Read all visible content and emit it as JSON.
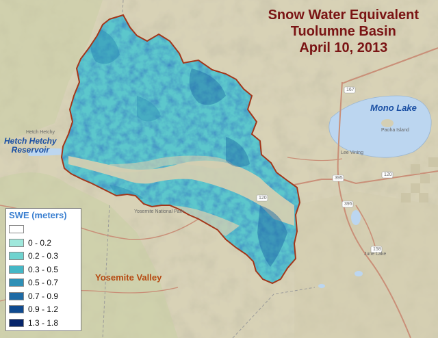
{
  "title": {
    "line1": "Snow Water Equivalent",
    "line2": "Tuolumne Basin",
    "line3": "April 10, 2013",
    "color": "#7a1414"
  },
  "labels": {
    "lake": "Mono Lake",
    "reservoir_line1": "Hetch Hetchy",
    "reservoir_line2": "Reservoir",
    "valley": "Yosemite Valley",
    "small": {
      "basin_label": "Hetch Hetchy",
      "island": "Paoha Island",
      "lee_vining": "Lee Vining",
      "june_lake": "June Lake",
      "park": "Yosemite National Park",
      "route_167": "167",
      "route_120a": "120",
      "route_120b": "120",
      "route_395a": "395",
      "route_395b": "395",
      "route_158": "158"
    }
  },
  "legend": {
    "title": "SWE (meters)",
    "items": [
      {
        "label": "",
        "color": "#ffffff"
      },
      {
        "label": "0 - 0.2",
        "color": "#9fe8dc"
      },
      {
        "label": "0.2 - 0.3",
        "color": "#6fd3cf"
      },
      {
        "label": "0.3 - 0.5",
        "color": "#45b7c6"
      },
      {
        "label": "0.5 - 0.7",
        "color": "#2e8fb6"
      },
      {
        "label": "0.7 - 0.9",
        "color": "#1d6aa5"
      },
      {
        "label": "0.9 - 1.2",
        "color": "#0f4a8f"
      },
      {
        "label": "1.3 - 1.8",
        "color": "#06256b"
      }
    ]
  },
  "colors": {
    "basin_outline": "#a3361a",
    "terrain": "#d9d3b8",
    "water": "#bcd6f0",
    "roads": "#c98f78"
  }
}
